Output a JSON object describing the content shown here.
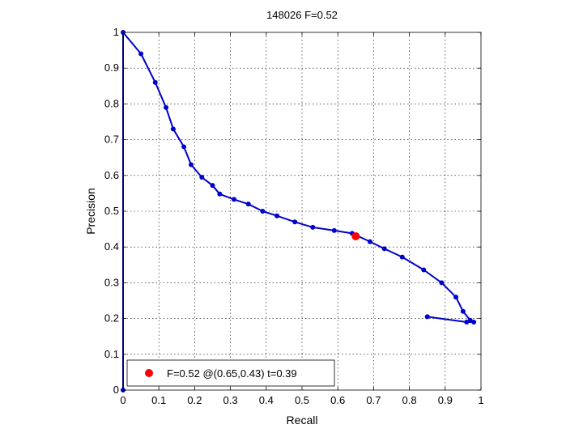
{
  "chart_data": {
    "type": "line",
    "title": "148026 F=0.52",
    "xlabel": "Recall",
    "ylabel": "Precision",
    "xlim": [
      0,
      1
    ],
    "ylim": [
      0,
      1
    ],
    "xticks": [
      "0",
      "0.1",
      "0.2",
      "0.3",
      "0.4",
      "0.5",
      "0.6",
      "0.7",
      "0.8",
      "0.9",
      "1"
    ],
    "yticks": [
      "0",
      "0.1",
      "0.2",
      "0.3",
      "0.4",
      "0.5",
      "0.6",
      "0.7",
      "0.8",
      "0.9",
      "1"
    ],
    "grid": true,
    "series": [
      {
        "color": "#0000cc",
        "marker": "dot",
        "points": [
          [
            0.0,
            0.0
          ],
          [
            0.0,
            1.0
          ],
          [
            0.05,
            0.94
          ],
          [
            0.09,
            0.86
          ],
          [
            0.12,
            0.79
          ],
          [
            0.14,
            0.73
          ],
          [
            0.17,
            0.68
          ],
          [
            0.19,
            0.63
          ],
          [
            0.22,
            0.595
          ],
          [
            0.25,
            0.572
          ],
          [
            0.27,
            0.548
          ],
          [
            0.31,
            0.533
          ],
          [
            0.35,
            0.52
          ],
          [
            0.39,
            0.5
          ],
          [
            0.43,
            0.487
          ],
          [
            0.48,
            0.47
          ],
          [
            0.53,
            0.455
          ],
          [
            0.59,
            0.446
          ],
          [
            0.64,
            0.438
          ],
          [
            0.69,
            0.415
          ],
          [
            0.73,
            0.395
          ],
          [
            0.78,
            0.372
          ],
          [
            0.84,
            0.336
          ],
          [
            0.89,
            0.3
          ],
          [
            0.93,
            0.26
          ],
          [
            0.95,
            0.22
          ],
          [
            0.97,
            0.195
          ],
          [
            0.98,
            0.19
          ],
          [
            0.96,
            0.19
          ],
          [
            0.85,
            0.205
          ]
        ]
      }
    ],
    "best_point": {
      "x": 0.65,
      "y": 0.43,
      "color": "#ff0000",
      "label": "F=0.52 @(0.65,0.43) t=0.39"
    },
    "legend_position": "bottom-left"
  }
}
